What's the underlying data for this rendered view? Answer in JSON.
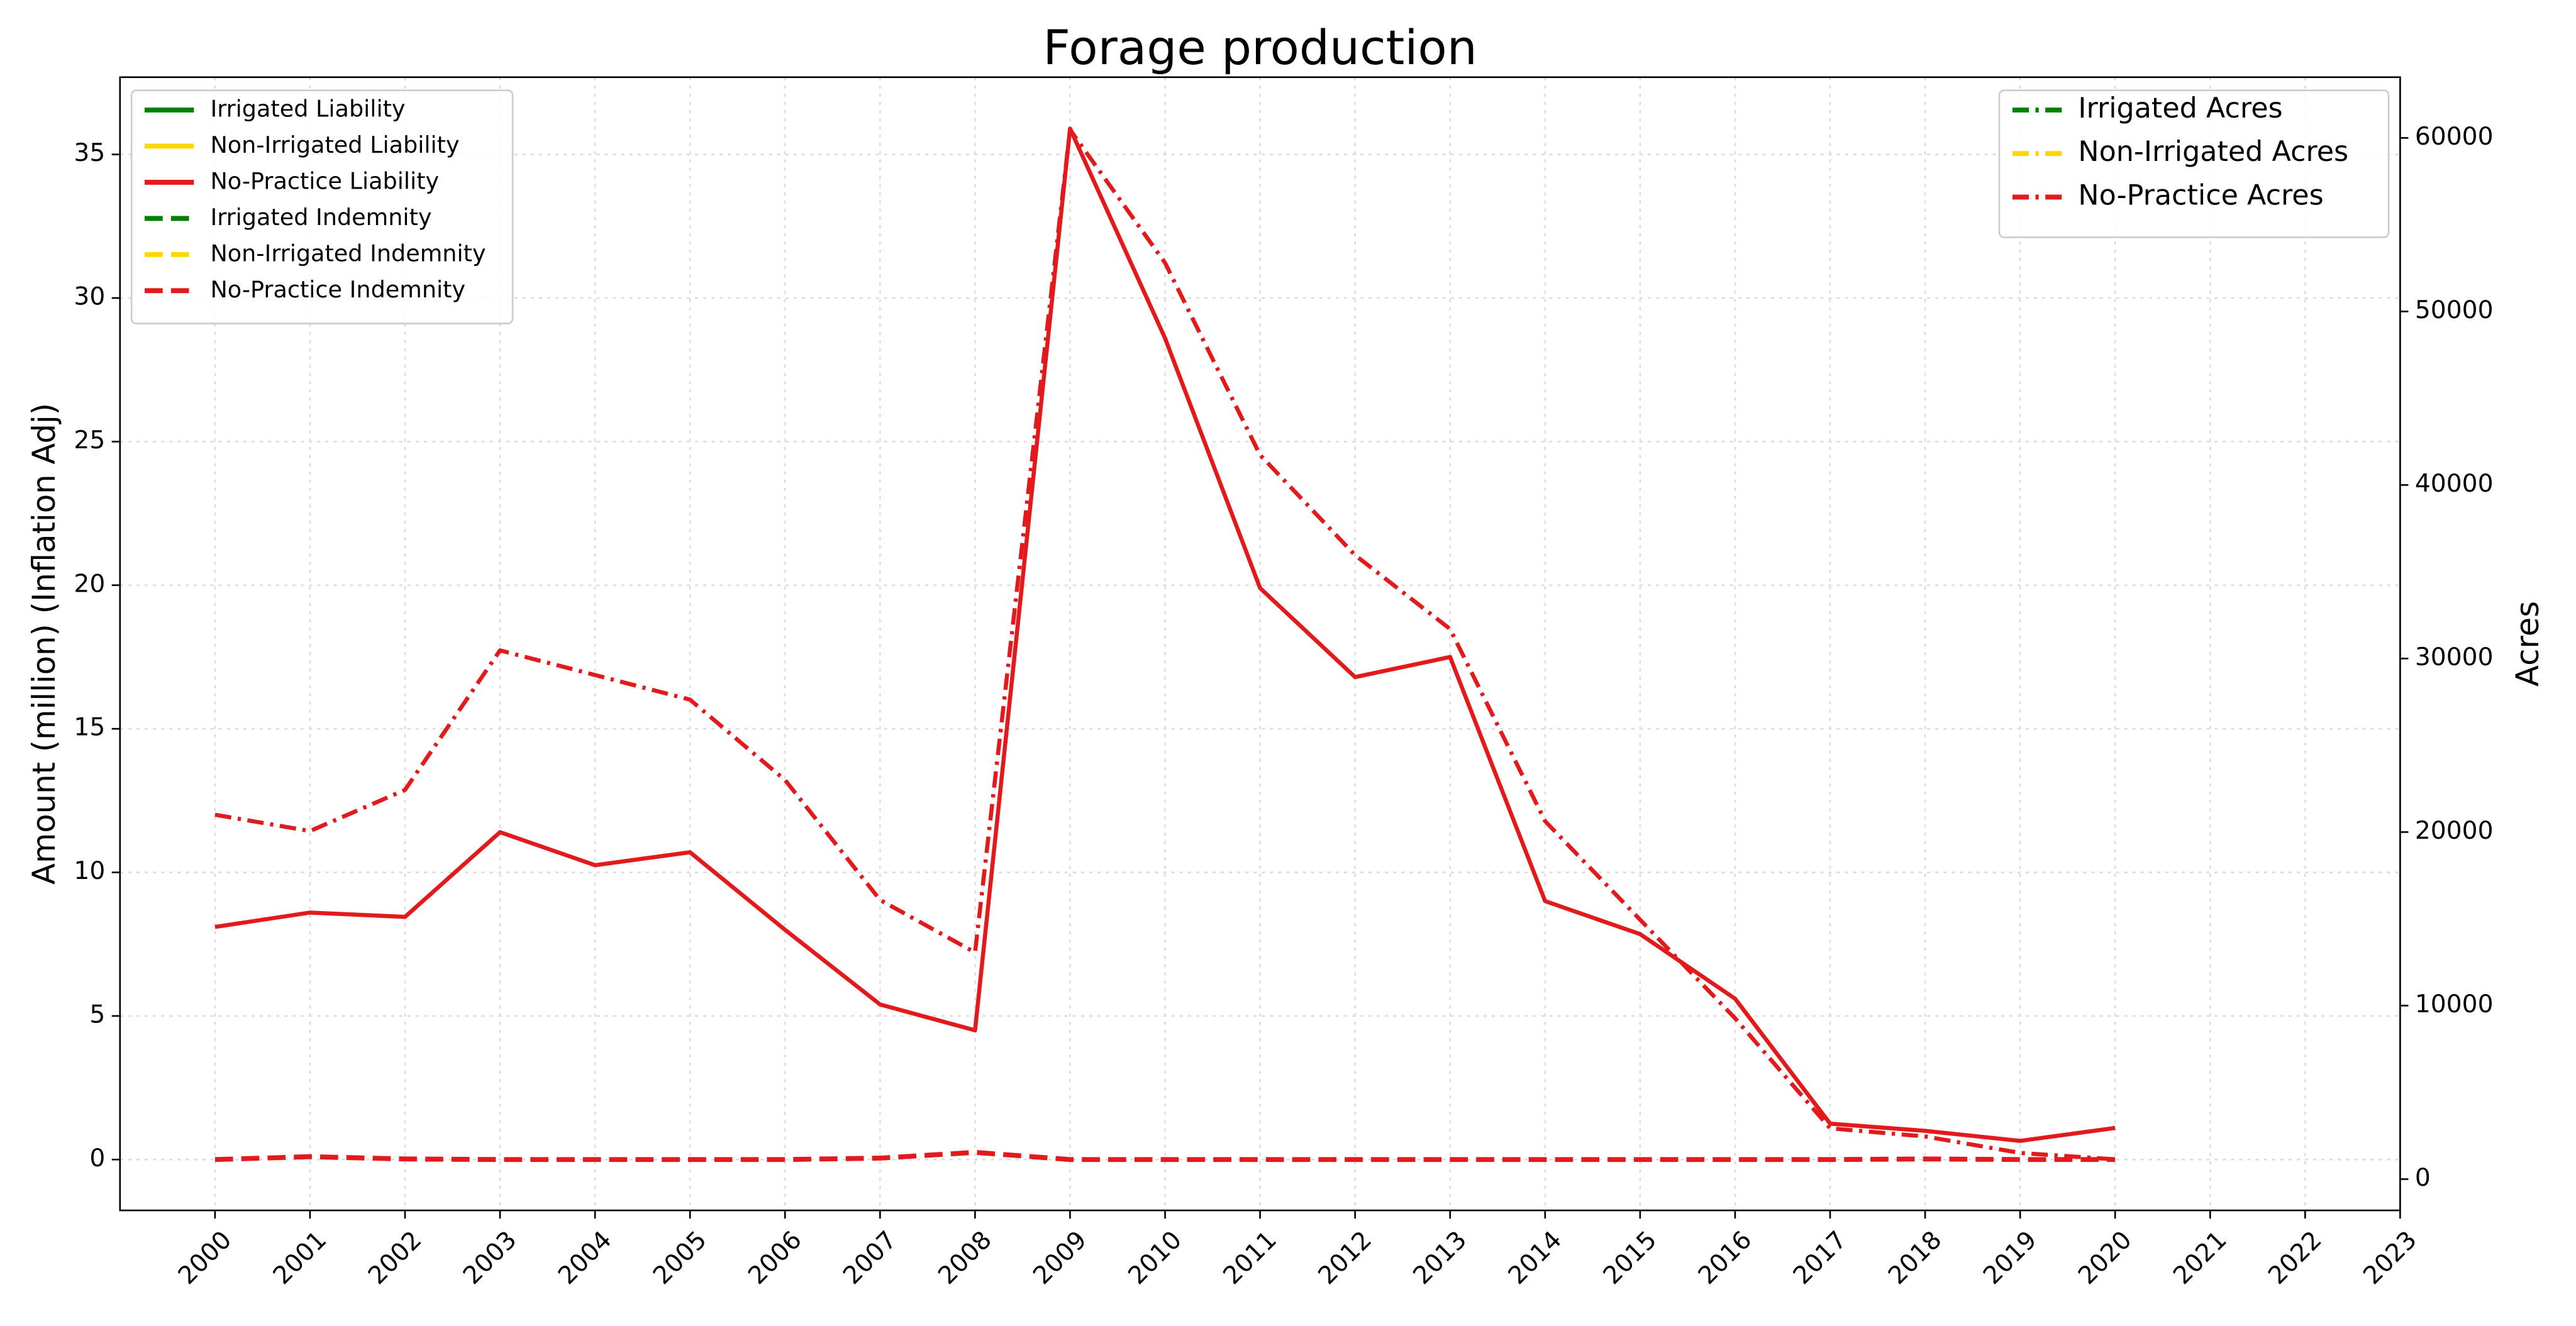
{
  "chart_data": {
    "type": "line",
    "title": "Forage production",
    "y_label": "Amount (million) (Inflation Adj)",
    "y2_label": "Acres",
    "x": [
      2000,
      2001,
      2002,
      2003,
      2004,
      2005,
      2006,
      2007,
      2008,
      2009,
      2010,
      2011,
      2012,
      2013,
      2014,
      2015,
      2016,
      2017,
      2018,
      2019,
      2020
    ],
    "xlim": [
      1999,
      2023
    ],
    "xticks": [
      2000,
      2001,
      2002,
      2003,
      2004,
      2005,
      2006,
      2007,
      2008,
      2009,
      2010,
      2011,
      2012,
      2013,
      2014,
      2015,
      2016,
      2017,
      2018,
      2019,
      2020,
      2021,
      2022,
      2023
    ],
    "ylim": [
      -1.77,
      37.69
    ],
    "yticks": [
      0,
      5,
      10,
      15,
      20,
      25,
      30,
      35
    ],
    "y2lim": [
      -1800,
      63500
    ],
    "y2ticks": [
      0,
      10000,
      20000,
      30000,
      40000,
      50000,
      60000
    ],
    "grid": true,
    "legend": "upper left",
    "legend2": "upper right",
    "series": [
      {
        "name": "Irrigated Liability",
        "color": "#008000",
        "linestyle": "solid",
        "values": [
          null,
          null,
          null,
          null,
          null,
          null,
          null,
          null,
          null,
          null,
          null,
          null,
          null,
          null,
          null,
          null,
          null,
          null,
          null,
          null,
          null
        ]
      },
      {
        "name": "Non-Irrigated Liability",
        "color": "#ffd700",
        "linestyle": "solid",
        "values": [
          null,
          null,
          null,
          null,
          null,
          null,
          null,
          null,
          null,
          null,
          null,
          null,
          null,
          null,
          null,
          null,
          null,
          null,
          null,
          null,
          null
        ]
      },
      {
        "name": "No-Practice Liability",
        "color": "#e31a1c",
        "linestyle": "solid",
        "values": [
          8.1,
          8.6,
          8.45,
          11.4,
          10.25,
          10.7,
          8.0,
          5.4,
          4.5,
          35.9,
          28.6,
          19.9,
          16.8,
          17.5,
          9.0,
          7.85,
          5.6,
          1.25,
          1.0,
          0.65,
          1.1
        ]
      },
      {
        "name": "Irrigated Indemnity",
        "color": "#008000",
        "linestyle": "dashed",
        "values": [
          null,
          null,
          null,
          null,
          null,
          null,
          null,
          null,
          null,
          null,
          null,
          null,
          null,
          null,
          null,
          null,
          null,
          null,
          null,
          null,
          null
        ]
      },
      {
        "name": "Non-Irrigated Indemnity",
        "color": "#ffd700",
        "linestyle": "dashed",
        "values": [
          null,
          null,
          null,
          null,
          null,
          null,
          null,
          null,
          null,
          null,
          null,
          null,
          null,
          null,
          null,
          null,
          null,
          null,
          null,
          null,
          null
        ]
      },
      {
        "name": "No-Practice Indemnity",
        "color": "#e31a1c",
        "linestyle": "dashed",
        "values": [
          0,
          0.1,
          0.02,
          0,
          0,
          0,
          0,
          0.05,
          0.25,
          0,
          0,
          0,
          0,
          0,
          0,
          0,
          0,
          0,
          0.02,
          0,
          0
        ]
      },
      {
        "name": "Irrigated Acres",
        "color": "#008000",
        "linestyle": "dashdot",
        "axis": "y2",
        "values": [
          null,
          null,
          null,
          null,
          null,
          null,
          null,
          null,
          null,
          null,
          null,
          null,
          null,
          null,
          null,
          null,
          null,
          null,
          null,
          null,
          null
        ]
      },
      {
        "name": "Non-Irrigated Acres",
        "color": "#ffd700",
        "linestyle": "dashdot",
        "axis": "y2",
        "values": [
          null,
          null,
          null,
          null,
          null,
          null,
          null,
          null,
          null,
          null,
          null,
          null,
          null,
          null,
          null,
          null,
          null,
          null,
          null,
          null,
          null
        ]
      },
      {
        "name": "No-Practice Acres",
        "color": "#e31a1c",
        "linestyle": "dashdot",
        "axis": "y2",
        "values": [
          21000,
          20060,
          22430,
          30470,
          29050,
          27630,
          23000,
          16090,
          13060,
          60470,
          52800,
          41730,
          35960,
          31700,
          20630,
          14950,
          9270,
          2930,
          2460,
          1510,
          1140
        ]
      }
    ]
  }
}
